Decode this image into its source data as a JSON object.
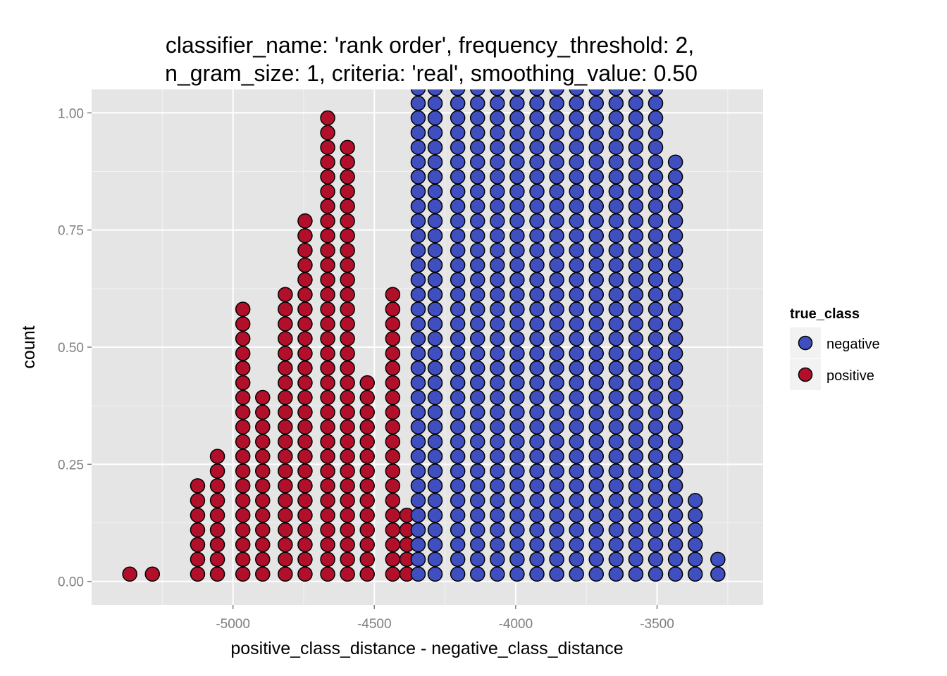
{
  "chart_data": {
    "type": "dotplot",
    "title_lines": [
      "classifier_name: 'rank order', frequency_threshold: 2,",
      "n_gram_size: 1, criteria: 'real', smoothing_value: 0.50"
    ],
    "xlabel": "positive_class_distance - negative_class_distance",
    "ylabel": "count",
    "xlim": [
      -5500,
      -3125
    ],
    "ylim": [
      -0.05,
      1.05
    ],
    "x_ticks": [
      -5000,
      -4500,
      -4000,
      -3500
    ],
    "x_tick_labels": [
      "-5000",
      "-4500",
      "-4000",
      "-3500"
    ],
    "y_ticks": [
      0,
      0.25,
      0.5,
      0.75,
      1.0
    ],
    "y_tick_labels": [
      "0.00",
      "0.25",
      "0.50",
      "0.75",
      "1.00"
    ],
    "grid": true,
    "legend": {
      "title": "true_class",
      "position": "right",
      "entries": [
        {
          "label": "negative",
          "color": "#3f4fbf"
        },
        {
          "label": "positive",
          "color": "#b2102a"
        }
      ]
    },
    "dot_stack_spacing": 0.0314,
    "series": [
      {
        "name": "positive",
        "color": "#b2102a",
        "stacks": [
          {
            "x": -5365,
            "count": 1
          },
          {
            "x": -5285,
            "count": 1
          },
          {
            "x": -5125,
            "count": 7
          },
          {
            "x": -5055,
            "count": 9
          },
          {
            "x": -4965,
            "count": 19
          },
          {
            "x": -4895,
            "count": 13
          },
          {
            "x": -4815,
            "count": 20
          },
          {
            "x": -4745,
            "count": 25
          },
          {
            "x": -4665,
            "count": 32
          },
          {
            "x": -4595,
            "count": 30
          },
          {
            "x": -4525,
            "count": 14
          },
          {
            "x": -4435,
            "count": 20
          },
          {
            "x": -4385,
            "count": 5
          }
        ]
      },
      {
        "name": "negative",
        "color": "#3f4fbf",
        "stacks": [
          {
            "x": -4345,
            "count": 34
          },
          {
            "x": -4285,
            "count": 34
          },
          {
            "x": -4205,
            "count": 34
          },
          {
            "x": -4135,
            "count": 34
          },
          {
            "x": -4065,
            "count": 34
          },
          {
            "x": -3995,
            "count": 34
          },
          {
            "x": -3925,
            "count": 34
          },
          {
            "x": -3855,
            "count": 34
          },
          {
            "x": -3785,
            "count": 34
          },
          {
            "x": -3715,
            "count": 34
          },
          {
            "x": -3645,
            "count": 34
          },
          {
            "x": -3575,
            "count": 34
          },
          {
            "x": -3505,
            "count": 34
          },
          {
            "x": -3435,
            "count": 29
          },
          {
            "x": -3365,
            "count": 6
          },
          {
            "x": -3285,
            "count": 2
          }
        ]
      }
    ]
  }
}
